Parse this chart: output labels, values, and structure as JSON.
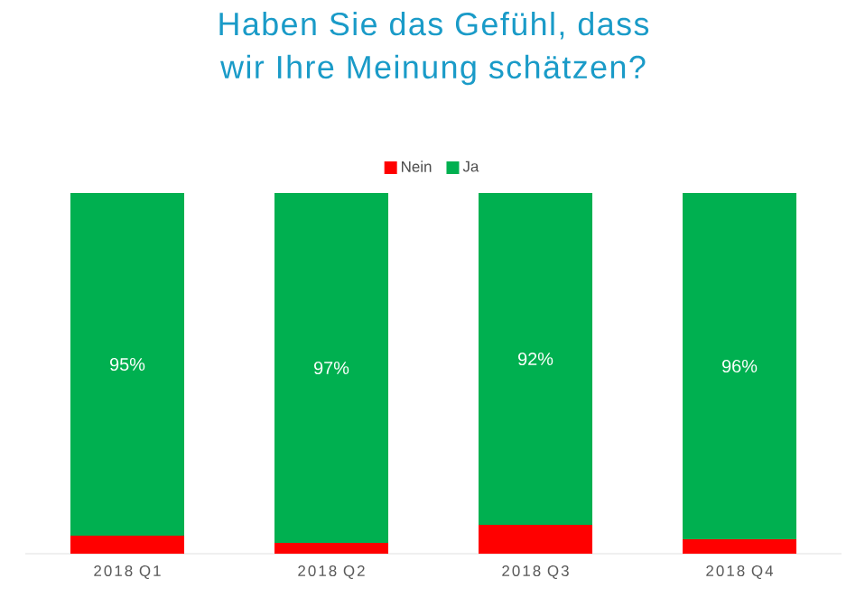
{
  "chart_data": {
    "type": "bar",
    "title": "Haben Sie das Gefühl, dass wir Ihre Meinung schätzen?",
    "categories": [
      "2018 Q1",
      "2018 Q2",
      "2018 Q3",
      "2018 Q4"
    ],
    "stacked": true,
    "ylim": [
      0,
      100
    ],
    "legend": "top",
    "series": [
      {
        "name": "Nein",
        "color": "#ff0000",
        "values": [
          5,
          3,
          8,
          4
        ]
      },
      {
        "name": "Ja",
        "color": "#00b050",
        "values": [
          95,
          97,
          92,
          96
        ],
        "value_labels": [
          "95%",
          "97%",
          "92%",
          "96%"
        ]
      }
    ]
  }
}
